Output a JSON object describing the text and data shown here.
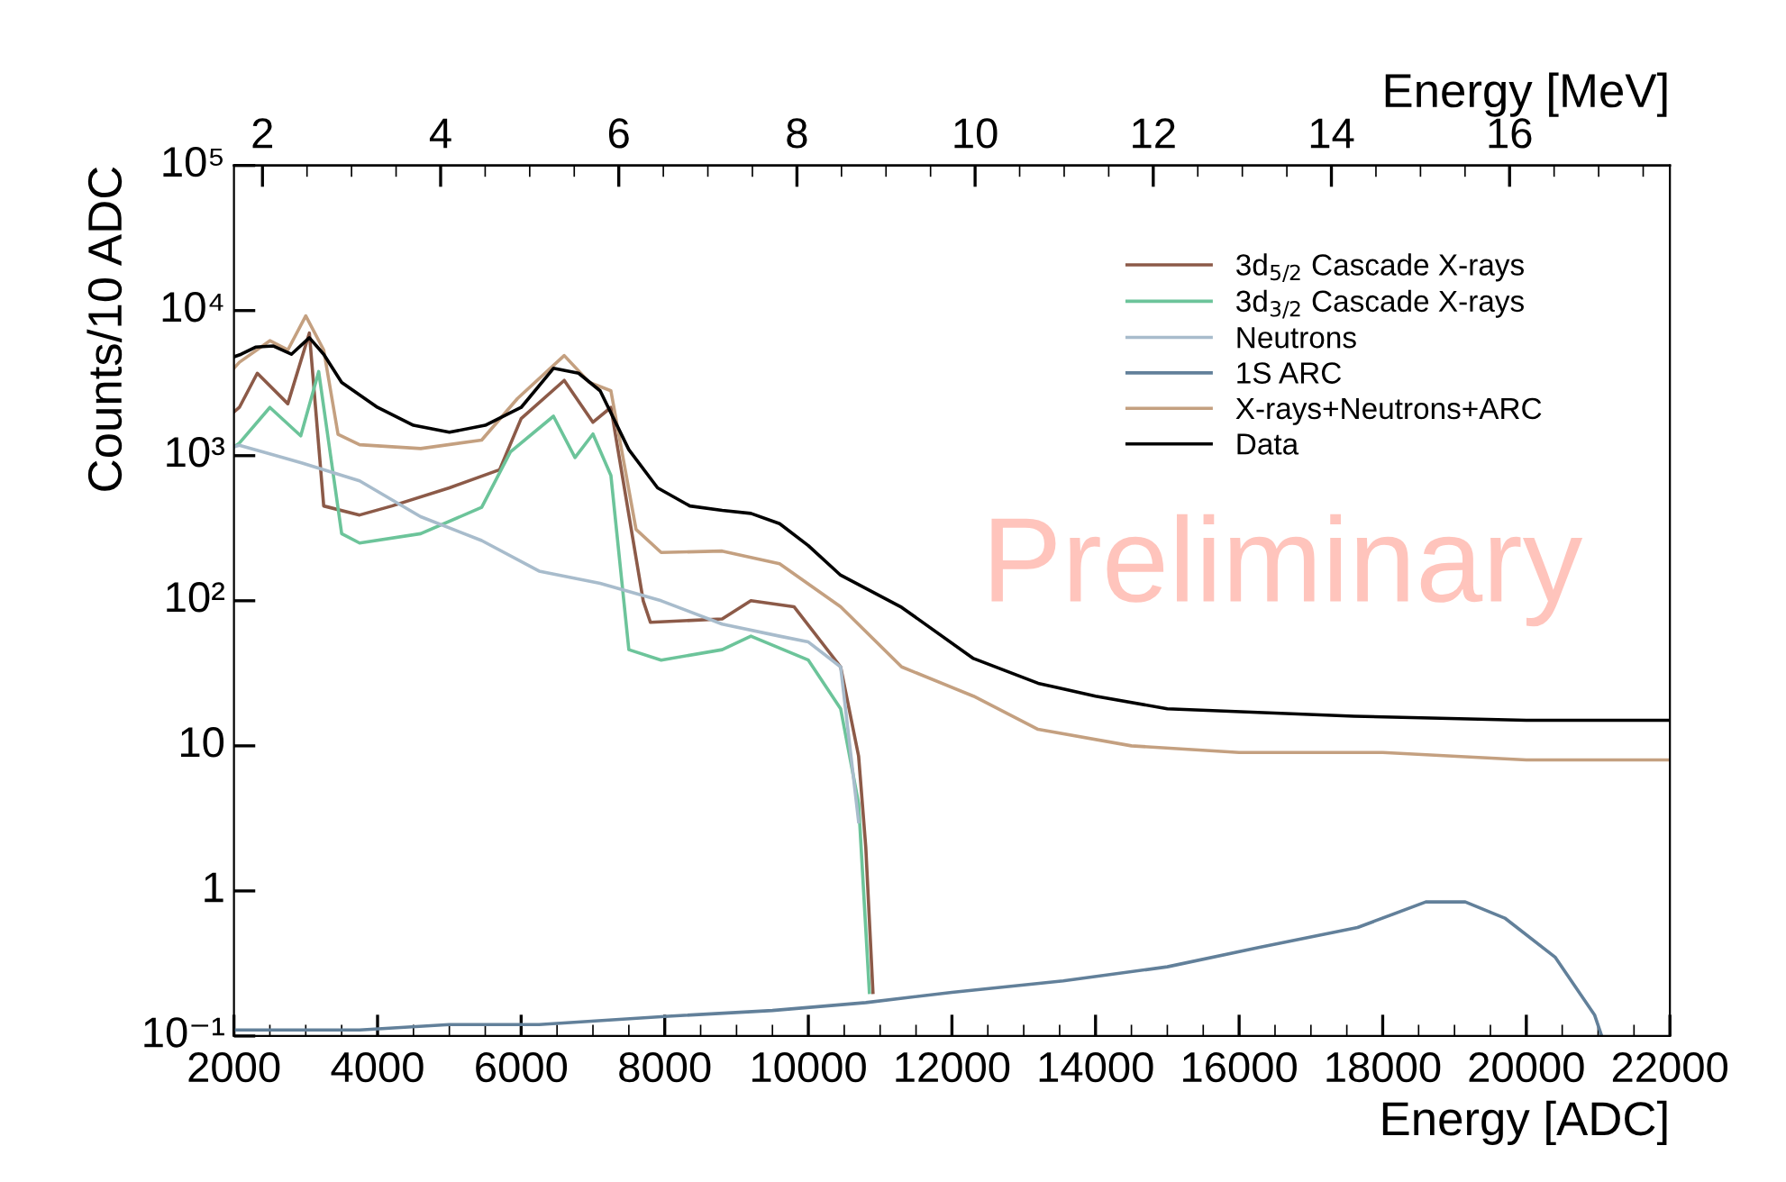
{
  "chart_data": {
    "type": "line",
    "xlabel": "Energy [ADC]",
    "ylabel": "Counts/10 ADC",
    "x2label": "Energy [MeV]",
    "xlim": [
      2000,
      22000
    ],
    "xticks": [
      2000,
      4000,
      6000,
      8000,
      10000,
      12000,
      14000,
      16000,
      18000,
      20000,
      22000
    ],
    "x2lim": [
      1.68,
      17.8
    ],
    "x2ticks": [
      2,
      4,
      6,
      8,
      10,
      12,
      14,
      16
    ],
    "log": "y",
    "ylim": [
      0.1,
      100000
    ],
    "yticks": [
      {
        "value": 0.1,
        "label": "10⁻¹"
      },
      1,
      10,
      {
        "value": 100,
        "label": "10²"
      },
      {
        "value": 1000,
        "label": "10³"
      },
      {
        "value": 10000,
        "label": "10⁴"
      },
      {
        "value": 100000,
        "label": "10⁵"
      }
    ],
    "grid": false,
    "legend": "top right",
    "annotations": [
      "Preliminary"
    ],
    "series": [
      {
        "name": "3d$_{5/2}$ Cascade X-rays",
        "color": "#8c5a48",
        "x": [
          2000,
          2075,
          2325,
          2750,
          3050,
          3250,
          3750,
          4200,
          5000,
          5700,
          6000,
          6600,
          7000,
          7250,
          7700,
          7800,
          8800,
          9200,
          9800,
          10450,
          10700,
          10800,
          10900
        ],
        "values": [
          2000,
          2150,
          3700,
          2280,
          7000,
          450,
          390,
          450,
          600,
          800,
          1800,
          3300,
          1700,
          2150,
          100,
          71,
          75,
          100,
          91,
          35,
          8.5,
          2,
          0.2
        ]
      },
      {
        "name": "3d$_{3/2}$ Cascade X-rays",
        "color": "#6cc49a",
        "x": [
          2000,
          2075,
          2500,
          2930,
          3180,
          3500,
          3750,
          4600,
          5450,
          5850,
          6450,
          6750,
          7000,
          7250,
          7500,
          7950,
          8800,
          9200,
          10000,
          10450,
          10700,
          10850
        ],
        "values": [
          1150,
          1220,
          2150,
          1370,
          3800,
          290,
          250,
          290,
          440,
          1060,
          1870,
          970,
          1410,
          730,
          46,
          39,
          46,
          57,
          39,
          18,
          4,
          0.2
        ]
      },
      {
        "name": "Neutrons",
        "color": "#a8bccc",
        "x": [
          2000,
          2075,
          2950,
          3750,
          4600,
          5450,
          6250,
          7100,
          7950,
          8800,
          9600,
          10000,
          10450,
          10700
        ],
        "values": [
          1150,
          1180,
          890,
          670,
          380,
          260,
          160,
          132,
          100,
          69,
          57,
          52,
          35,
          3
        ]
      },
      {
        "name": "1S ARC",
        "color": "#62809a",
        "x": [
          2000,
          3750,
          5000,
          6250,
          8050,
          9500,
          10800,
          12000,
          13550,
          15000,
          16300,
          17650,
          18600,
          19150,
          19700,
          20400,
          20950,
          21050
        ],
        "values": [
          0.11,
          0.11,
          0.12,
          0.12,
          0.137,
          0.15,
          0.17,
          0.2,
          0.24,
          0.3,
          0.41,
          0.56,
          0.84,
          0.84,
          0.65,
          0.35,
          0.14,
          0.1
        ]
      },
      {
        "name": "X-rays+Neutrons+ARC",
        "color": "#c4a080",
        "x": [
          2000,
          2075,
          2500,
          2750,
          3000,
          3250,
          3450,
          3750,
          4600,
          5450,
          5950,
          6600,
          6950,
          7250,
          7600,
          7950,
          8800,
          9600,
          10450,
          11300,
          12300,
          13200,
          14500,
          16000,
          18000,
          20000,
          22000
        ],
        "values": [
          4000,
          4400,
          6200,
          5350,
          9200,
          5350,
          1400,
          1190,
          1120,
          1280,
          2480,
          4900,
          3200,
          2800,
          310,
          215,
          220,
          180,
          91,
          35,
          22,
          13,
          10,
          9,
          9,
          8,
          8
        ]
      },
      {
        "name": "Data",
        "color": "#000000",
        "x": [
          2000,
          2100,
          2300,
          2550,
          2800,
          3050,
          3250,
          3500,
          4000,
          4500,
          5000,
          5500,
          6000,
          6450,
          6800,
          7100,
          7500,
          7900,
          8350,
          8800,
          9200,
          9600,
          10000,
          10450,
          11300,
          12300,
          13200,
          14000,
          15000,
          17600,
          20000,
          22000
        ],
        "values": [
          4800,
          5000,
          5600,
          5700,
          5000,
          6500,
          5000,
          3200,
          2150,
          1620,
          1450,
          1620,
          2150,
          4000,
          3700,
          2800,
          1100,
          600,
          450,
          420,
          400,
          340,
          240,
          150,
          90,
          40,
          27,
          22,
          18,
          16,
          15,
          15
        ]
      }
    ]
  }
}
